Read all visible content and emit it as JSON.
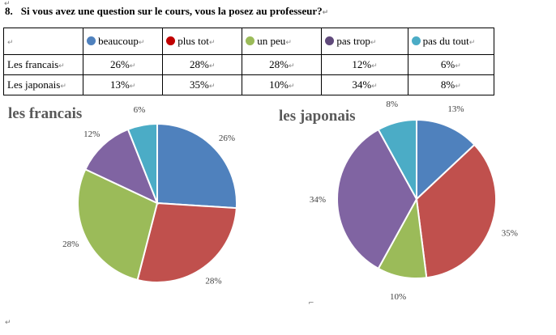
{
  "question": {
    "number": "8.",
    "text": "Si vous avez une question sur le cours, vous la posez au professeur?"
  },
  "table": {
    "headers": [
      "beaucoup",
      "plus tot",
      "un peu",
      "pas trop",
      "pas du tout"
    ],
    "header_colors": [
      "#4F81BD",
      "#C00000",
      "#9BBB59",
      "#604A7B",
      "#4BACC6"
    ],
    "rows": [
      {
        "label": "Les francais",
        "values": [
          "26%",
          "28%",
          "28%",
          "12%",
          "6%"
        ]
      },
      {
        "label": "Les japonais",
        "values": [
          "13%",
          "35%",
          "10%",
          "34%",
          "8%"
        ]
      }
    ]
  },
  "chart_data": [
    {
      "type": "pie",
      "title": "les francais",
      "categories": [
        "beaucoup",
        "plus tot",
        "un peu",
        "pas trop",
        "pas du tout"
      ],
      "values": [
        26,
        28,
        28,
        12,
        6
      ],
      "labels": [
        "26%",
        "28%",
        "28%",
        "12%",
        "6%"
      ],
      "colors": [
        "#4F81BD",
        "#C0504D",
        "#9BBB59",
        "#8064A2",
        "#4BACC6"
      ]
    },
    {
      "type": "pie",
      "title": "les japonais",
      "categories": [
        "beaucoup",
        "plus tot",
        "un peu",
        "pas trop",
        "pas du tout"
      ],
      "values": [
        13,
        35,
        10,
        34,
        8
      ],
      "labels": [
        "13%",
        "35%",
        "10%",
        "34%",
        "8%"
      ],
      "colors": [
        "#4F81BD",
        "#C0504D",
        "#9BBB59",
        "#8064A2",
        "#4BACC6"
      ]
    }
  ]
}
